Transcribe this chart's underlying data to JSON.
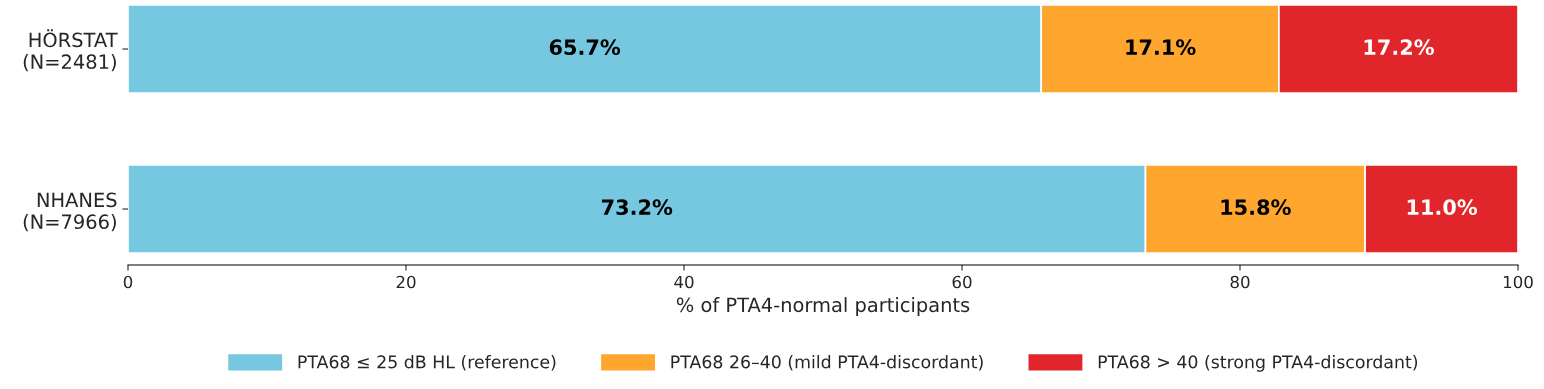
{
  "chart_data": {
    "type": "bar",
    "orientation": "horizontal",
    "stacked": true,
    "categories": [
      "HÖRSTAT\n(N=2481)",
      "NHANES\n(N=7966)"
    ],
    "series": [
      {
        "name": "PTA68 ≤ 25 dB HL (reference)",
        "color": "#76c7e0",
        "values": [
          65.7,
          73.2
        ],
        "value_labels": [
          "65.7%",
          "73.2%"
        ]
      },
      {
        "name": "PTA68 26–40 (mild PTA4-discordant)",
        "color": "#ffa62f",
        "values": [
          17.1,
          15.8
        ],
        "value_labels": [
          "17.1%",
          "15.8%"
        ]
      },
      {
        "name": "PTA68 > 40 (strong PTA4-discordant)",
        "color": "#e0262a",
        "values": [
          17.2,
          11.0
        ],
        "value_labels": [
          "17.2%",
          "11.0%"
        ]
      }
    ],
    "xlabel": "% of PTA4-normal participants",
    "xlim": [
      0,
      100
    ],
    "xticks": [
      0,
      20,
      40,
      60,
      80,
      100
    ],
    "grid": false,
    "legend": "bottom"
  }
}
